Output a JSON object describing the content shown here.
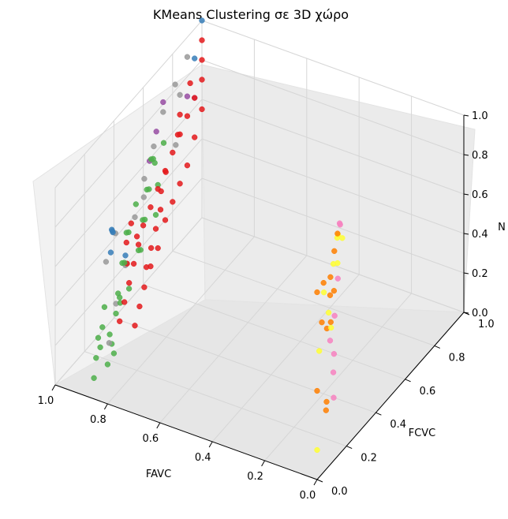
{
  "chart_data": {
    "type": "scatter",
    "title": "KMeans Clustering σε 3D χώρο",
    "xlabel": "FAVC",
    "ylabel": "FCVC",
    "zlabel": "N",
    "xlim": [
      0,
      1
    ],
    "ylim": [
      0,
      1
    ],
    "zlim": [
      0,
      1
    ],
    "xticks": [
      "0.0",
      "0.2",
      "0.4",
      "0.6",
      "0.8",
      "1.0"
    ],
    "yticks": [
      "0.0",
      "0.2",
      "0.4",
      "0.6",
      "0.8",
      "1.0"
    ],
    "zticks": [
      "0.0",
      "0.2",
      "0.4",
      "0.6",
      "0.8",
      "1.0"
    ],
    "grid": true,
    "colors": {
      "red": "#e41a1c",
      "green": "#4daf4a",
      "blue": "#377eb8",
      "purple": "#984ea3",
      "orange": "#ff7f00",
      "yellow": "#ffff33",
      "pink": "#f781bf",
      "gray": "#999999"
    },
    "series": [
      {
        "color_key": "yellow",
        "points": [
          [
            0.0,
            0.0,
            0.15
          ],
          [
            0.02,
            0.05,
            0.6
          ],
          [
            0.03,
            0.1,
            0.85
          ],
          [
            0.05,
            0.2,
            0.9
          ],
          [
            0.06,
            0.25,
            1.0
          ],
          [
            0.08,
            0.28,
            0.95
          ],
          [
            0.04,
            0.15,
            0.7
          ],
          [
            0.07,
            0.22,
            0.55
          ],
          [
            0.09,
            0.3,
            0.8
          ],
          [
            0.1,
            0.35,
            0.88
          ]
        ]
      },
      {
        "color_key": "orange",
        "points": [
          [
            0.0,
            0.0,
            0.45
          ],
          [
            0.0,
            0.0,
            0.95
          ],
          [
            0.01,
            0.05,
            0.75
          ],
          [
            0.02,
            0.08,
            0.92
          ],
          [
            0.03,
            0.12,
            0.65
          ],
          [
            0.04,
            0.16,
            0.78
          ],
          [
            0.05,
            0.18,
            0.85
          ],
          [
            0.06,
            0.2,
            0.6
          ],
          [
            0.07,
            0.24,
            0.72
          ],
          [
            0.08,
            0.26,
            0.9
          ],
          [
            0.02,
            0.1,
            0.3
          ],
          [
            0.09,
            0.3,
            0.95
          ],
          [
            0.05,
            0.15,
            0.2
          ]
        ]
      },
      {
        "color_key": "pink",
        "points": [
          [
            0.05,
            0.2,
            0.35
          ],
          [
            0.04,
            0.16,
            0.55
          ],
          [
            0.07,
            0.24,
            0.4
          ],
          [
            0.09,
            0.28,
            0.55
          ],
          [
            0.1,
            0.32,
            0.7
          ],
          [
            0.06,
            0.22,
            0.2
          ],
          [
            0.11,
            0.35,
            0.95
          ],
          [
            0.08,
            0.3,
            1.0
          ]
        ]
      },
      {
        "color_key": "blue",
        "points": [
          [
            0.9,
            0.2,
            0.55
          ],
          [
            0.92,
            0.25,
            0.6
          ],
          [
            0.95,
            0.3,
            0.55
          ],
          [
            0.98,
            0.35,
            0.5
          ],
          [
            1.0,
            1.0,
            1.0
          ],
          [
            1.0,
            0.95,
            0.85
          ],
          [
            0.9,
            0.3,
            0.45
          ]
        ]
      },
      {
        "color_key": "purple",
        "points": [
          [
            0.92,
            0.5,
            0.75
          ],
          [
            0.95,
            0.6,
            0.8
          ],
          [
            1.0,
            0.95,
            0.65
          ],
          [
            1.0,
            0.9,
            0.7
          ],
          [
            0.98,
            0.7,
            0.85
          ]
        ]
      },
      {
        "color_key": "gray",
        "points": [
          [
            0.85,
            0.1,
            0.2
          ],
          [
            0.88,
            0.2,
            0.3
          ],
          [
            0.9,
            0.3,
            0.4
          ],
          [
            0.92,
            0.4,
            0.55
          ],
          [
            0.94,
            0.5,
            0.65
          ],
          [
            0.96,
            0.6,
            0.72
          ],
          [
            0.98,
            0.7,
            0.8
          ],
          [
            0.99,
            0.8,
            0.85
          ],
          [
            1.0,
            0.9,
            0.9
          ],
          [
            1.0,
            0.85,
            0.75
          ],
          [
            0.97,
            0.55,
            0.5
          ],
          [
            0.95,
            0.4,
            0.3
          ],
          [
            0.93,
            0.35,
            0.35
          ],
          [
            0.91,
            0.25,
            0.6
          ],
          [
            0.96,
            0.75,
            0.6
          ],
          [
            0.89,
            0.15,
            0.55
          ]
        ]
      },
      {
        "color_key": "green",
        "points": [
          [
            0.8,
            0.0,
            0.2
          ],
          [
            0.82,
            0.05,
            0.3
          ],
          [
            0.84,
            0.1,
            0.2
          ],
          [
            0.86,
            0.15,
            0.1
          ],
          [
            0.88,
            0.2,
            0.25
          ],
          [
            0.9,
            0.25,
            0.3
          ],
          [
            0.92,
            0.3,
            0.2
          ],
          [
            0.94,
            0.35,
            0.35
          ],
          [
            0.96,
            0.4,
            0.3
          ],
          [
            0.98,
            0.45,
            0.4
          ],
          [
            1.0,
            0.5,
            0.35
          ],
          [
            1.0,
            0.55,
            0.45
          ],
          [
            0.85,
            0.3,
            0.5
          ],
          [
            0.87,
            0.35,
            0.45
          ],
          [
            0.89,
            0.4,
            0.55
          ],
          [
            0.91,
            0.45,
            0.5
          ],
          [
            0.93,
            0.5,
            0.6
          ],
          [
            0.95,
            0.55,
            0.55
          ],
          [
            0.97,
            0.6,
            0.65
          ],
          [
            0.99,
            0.65,
            0.6
          ],
          [
            0.83,
            0.2,
            0.4
          ],
          [
            0.81,
            0.1,
            0.45
          ],
          [
            0.88,
            0.05,
            0.05
          ],
          [
            0.9,
            0.1,
            0.1
          ],
          [
            0.92,
            0.15,
            0.15
          ],
          [
            0.94,
            0.2,
            0.05
          ],
          [
            0.96,
            0.25,
            0.1
          ],
          [
            0.98,
            0.3,
            0.15
          ],
          [
            0.86,
            0.45,
            0.7
          ],
          [
            0.9,
            0.5,
            0.75
          ],
          [
            0.84,
            0.4,
            0.6
          ],
          [
            0.95,
            0.65,
            0.7
          ]
        ]
      },
      {
        "color_key": "red",
        "points": [
          [
            0.95,
            0.35,
            0.05
          ],
          [
            0.96,
            0.4,
            0.1
          ],
          [
            0.97,
            0.45,
            0.15
          ],
          [
            0.98,
            0.5,
            0.2
          ],
          [
            0.99,
            0.55,
            0.25
          ],
          [
            1.0,
            0.6,
            0.3
          ],
          [
            1.0,
            0.65,
            0.35
          ],
          [
            1.0,
            0.7,
            0.4
          ],
          [
            1.0,
            0.75,
            0.45
          ],
          [
            1.0,
            0.8,
            0.5
          ],
          [
            1.0,
            0.85,
            0.55
          ],
          [
            1.0,
            0.9,
            0.6
          ],
          [
            1.0,
            0.95,
            0.65
          ],
          [
            1.0,
            1.0,
            0.7
          ],
          [
            1.0,
            1.0,
            0.8
          ],
          [
            1.0,
            1.0,
            0.9
          ],
          [
            0.97,
            0.6,
            0.2
          ],
          [
            0.98,
            0.65,
            0.25
          ],
          [
            0.99,
            0.7,
            0.3
          ],
          [
            0.96,
            0.55,
            0.15
          ],
          [
            1.0,
            0.75,
            0.2
          ],
          [
            1.0,
            0.8,
            0.25
          ],
          [
            1.0,
            0.85,
            0.3
          ],
          [
            1.0,
            0.9,
            0.35
          ],
          [
            0.99,
            0.5,
            0.4
          ],
          [
            0.98,
            0.45,
            0.35
          ],
          [
            1.0,
            0.95,
            0.45
          ],
          [
            1.0,
            1.0,
            0.55
          ],
          [
            0.95,
            0.4,
            0.3
          ],
          [
            0.94,
            0.45,
            0.4
          ],
          [
            1.0,
            0.7,
            0.1
          ],
          [
            1.0,
            0.65,
            0.05
          ],
          [
            0.92,
            0.4,
            0.0
          ],
          [
            0.93,
            0.45,
            0.05
          ],
          [
            0.94,
            0.5,
            0.1
          ],
          [
            0.97,
            0.7,
            0.5
          ],
          [
            0.96,
            0.65,
            0.45
          ],
          [
            0.98,
            0.8,
            0.6
          ],
          [
            1.0,
            0.85,
            0.65
          ],
          [
            1.0,
            0.92,
            0.75
          ]
        ]
      }
    ]
  }
}
